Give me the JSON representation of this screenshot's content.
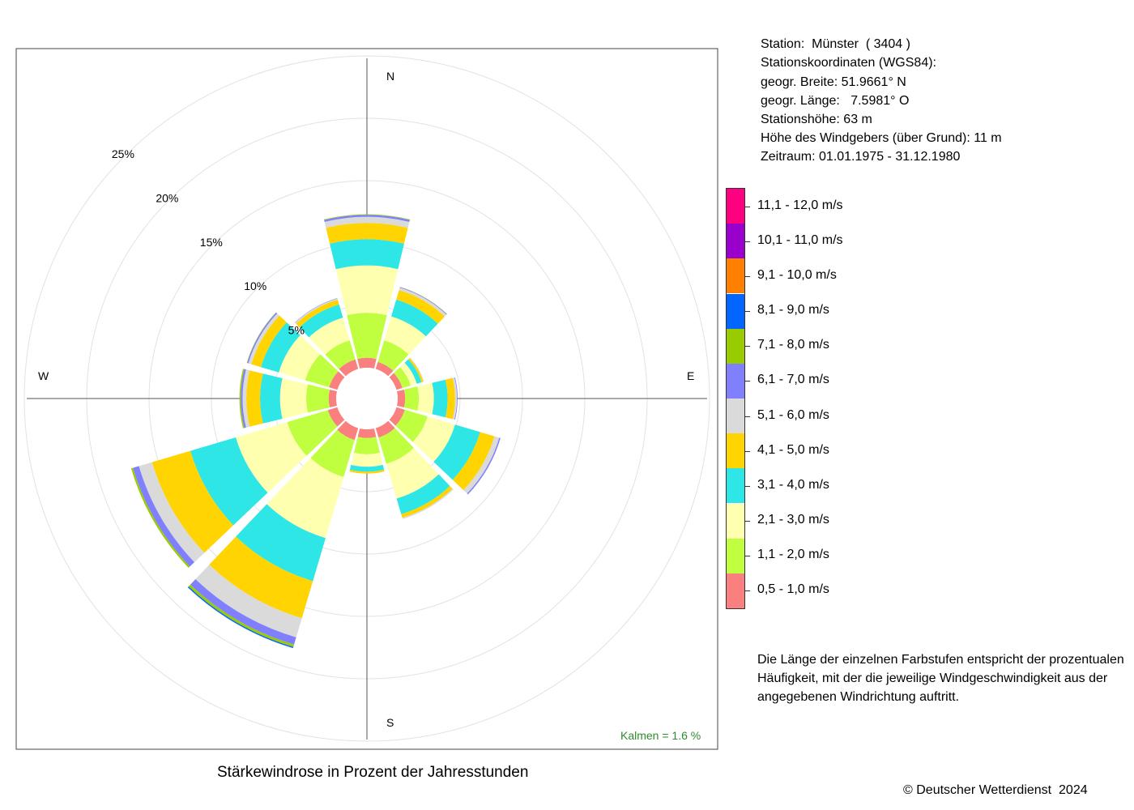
{
  "station": {
    "line1": "Station:  Münster  ( 3404 )",
    "line2": "Stationskoordinaten (WGS84):",
    "line3": "geogr. Breite: 51.9661° N",
    "line4": "geogr. Länge:   7.5981° O",
    "line5": "Stationshöhe: 63 m",
    "line6": "Höhe des Windgebers (über Grund): 11 m",
    "line7": "Zeitraum: 01.01.1975 - 31.12.1980"
  },
  "note": {
    "line1": "Die Länge der einzelnen Farbstufen entspricht der prozentualen",
    "line2": "Häufigkeit, mit der die jeweilige Windgeschwindigkeit aus der",
    "line3": "angegebenen Windrichtung auftritt."
  },
  "copyright": "© Deutscher Wetterdienst  2024",
  "chart_data": {
    "type": "wind-rose",
    "title": "Stärkewindrose in Prozent der Jahresstunden",
    "calm_label": "Kalmen  =  1.6 %",
    "directions": [
      "N",
      "E",
      "S",
      "W"
    ],
    "radial_ticks": [
      "5%",
      "10%",
      "15%",
      "20%",
      "25%"
    ],
    "radial_tick_values": [
      5,
      10,
      15,
      20,
      25
    ],
    "grid": true,
    "sector_angles_deg": [
      0,
      30,
      60,
      90,
      120,
      150,
      180,
      210,
      240,
      270,
      300,
      330
    ],
    "speed_classes": [
      {
        "label": "0,5 - 1,0 m/s",
        "color": "#fa8080"
      },
      {
        "label": "1,1 - 2,0 m/s",
        "color": "#bfff40"
      },
      {
        "label": "2,1 - 3,0 m/s",
        "color": "#ffffb0"
      },
      {
        "label": "3,1 - 4,0 m/s",
        "color": "#2ee6e6"
      },
      {
        "label": "4,1 - 5,0 m/s",
        "color": "#ffd400"
      },
      {
        "label": "5,1 - 6,0 m/s",
        "color": "#dadada"
      },
      {
        "label": "6,1 - 7,0 m/s",
        "color": "#8080ff"
      },
      {
        "label": "7,1 - 8,0 m/s",
        "color": "#99cc00"
      },
      {
        "label": "8,1 - 9,0 m/s",
        "color": "#0066ff"
      },
      {
        "label": "9,1 - 10,0 m/s",
        "color": "#ff8000"
      },
      {
        "label": "10,1 - 11,0 m/s",
        "color": "#9900cc"
      },
      {
        "label": "11,1 - 12,0 m/s",
        "color": "#ff0080"
      }
    ],
    "sectors": [
      {
        "dir": 0,
        "values": [
          0.8,
          3.6,
          3.8,
          2.1,
          1.3,
          0.5,
          0.15,
          0.05,
          0,
          0,
          0,
          0
        ]
      },
      {
        "dir": 30,
        "values": [
          0.6,
          1.8,
          2.0,
          1.4,
          0.8,
          0.2,
          0.05,
          0.02,
          0,
          0,
          0,
          0
        ]
      },
      {
        "dir": 60,
        "values": [
          0.5,
          0.7,
          0.5,
          0.4,
          0.15,
          0.05,
          0,
          0,
          0,
          0,
          0,
          0
        ]
      },
      {
        "dir": 90,
        "values": [
          0.6,
          1.1,
          1.2,
          1.1,
          0.6,
          0.15,
          0.05,
          0,
          0,
          0,
          0,
          0
        ]
      },
      {
        "dir": 120,
        "values": [
          0.7,
          1.9,
          2.3,
          2.1,
          1.2,
          0.4,
          0.1,
          0,
          0,
          0,
          0,
          0
        ]
      },
      {
        "dir": 150,
        "values": [
          0.8,
          2.2,
          2.9,
          1.3,
          0.3,
          0.1,
          0,
          0,
          0,
          0,
          0,
          0
        ]
      },
      {
        "dir": 180,
        "values": [
          0.7,
          1.3,
          1.0,
          0.4,
          0.15,
          0,
          0,
          0,
          0,
          0,
          0,
          0
        ]
      },
      {
        "dir": 210,
        "values": [
          1.0,
          3.1,
          5.1,
          3.6,
          3.1,
          1.6,
          0.6,
          0.2,
          0.1,
          0,
          0,
          0
        ]
      },
      {
        "dir": 240,
        "values": [
          0.8,
          3.4,
          4.3,
          3.8,
          3.2,
          1.1,
          0.5,
          0.15,
          0,
          0,
          0,
          0
        ]
      },
      {
        "dir": 270,
        "values": [
          0.6,
          1.8,
          2.1,
          1.6,
          1.1,
          0.3,
          0.15,
          0.1,
          0,
          0,
          0,
          0
        ]
      },
      {
        "dir": 300,
        "values": [
          0.7,
          2.0,
          2.2,
          1.5,
          0.8,
          0.25,
          0.1,
          0.03,
          0,
          0,
          0,
          0
        ]
      },
      {
        "dir": 330,
        "values": [
          0.8,
          1.6,
          1.9,
          1.1,
          0.4,
          0.1,
          0.03,
          0,
          0,
          0,
          0,
          0
        ]
      }
    ]
  }
}
